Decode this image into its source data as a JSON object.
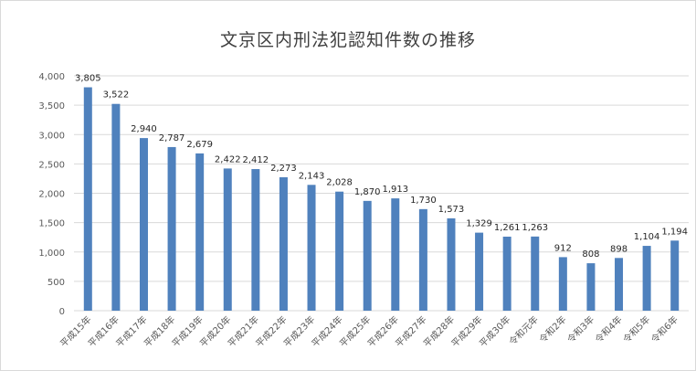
{
  "chart_data": {
    "type": "bar",
    "title": "文京区内刑法犯認知件数の推移",
    "categories": [
      "平成15年",
      "平成16年",
      "平成17年",
      "平成18年",
      "平成19年",
      "平成20年",
      "平成21年",
      "平成22年",
      "平成23年",
      "平成24年",
      "平成25年",
      "平成26年",
      "平成27年",
      "平成28年",
      "平成29年",
      "平成30年",
      "令和元年",
      "令和2年",
      "令和3年",
      "令和4年",
      "令和5年",
      "令和6年"
    ],
    "values": [
      3805,
      3522,
      2940,
      2787,
      2679,
      2422,
      2412,
      2273,
      2143,
      2028,
      1870,
      1913,
      1730,
      1573,
      1329,
      1261,
      1263,
      912,
      808,
      898,
      1104,
      1194
    ],
    "ylim": [
      0,
      4000
    ],
    "yticks": [
      0,
      500,
      1000,
      1500,
      2000,
      2500,
      3000,
      3500,
      4000
    ],
    "grid": true,
    "legend": "none",
    "bar_color": "#4f81bd",
    "grid_color": "#d9d9d9"
  }
}
